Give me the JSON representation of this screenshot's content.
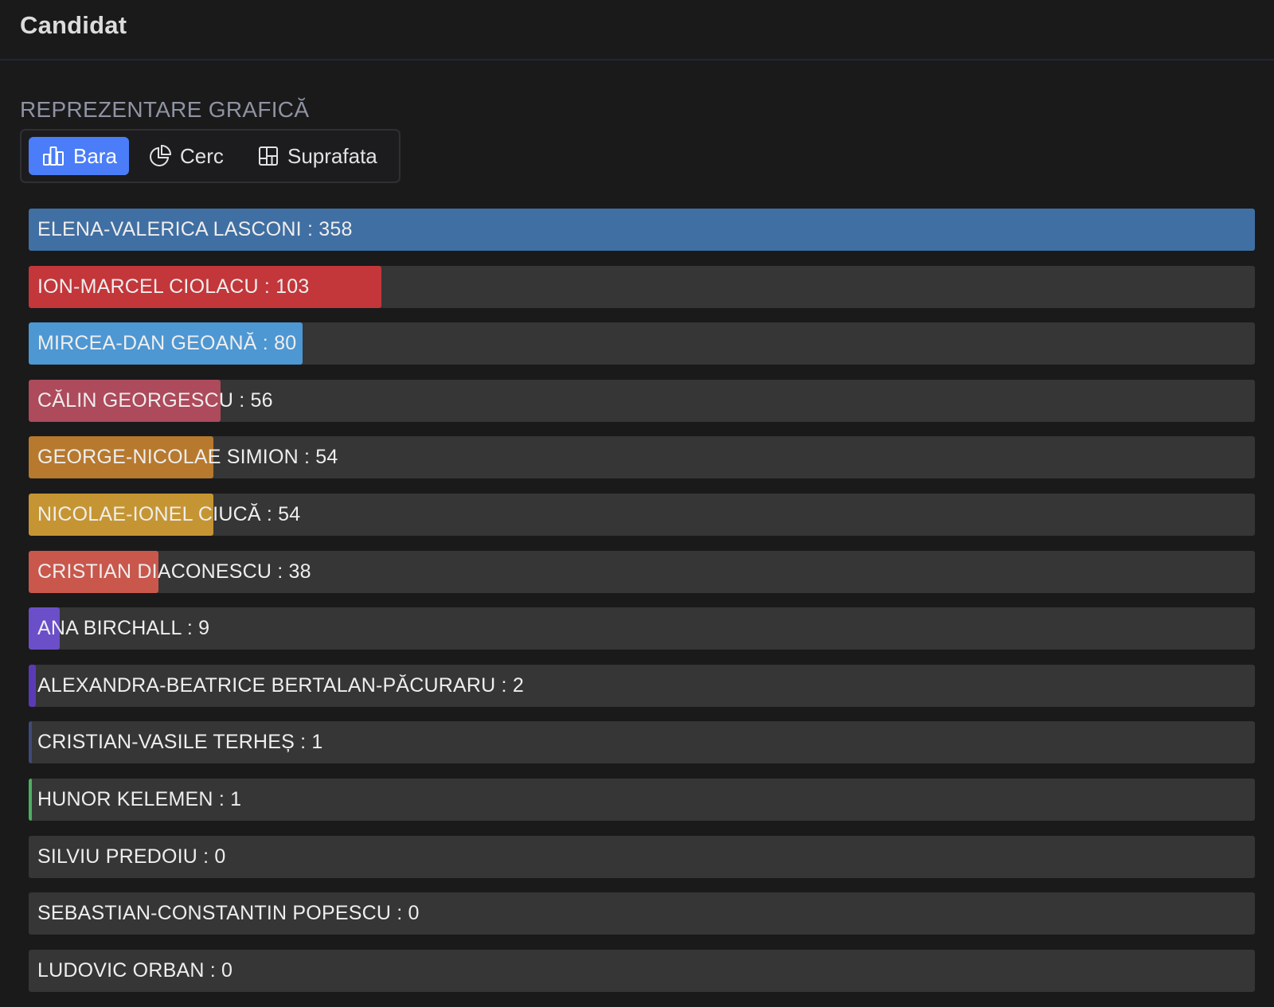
{
  "header": {
    "title": "Candidat"
  },
  "section": {
    "label": "REPREZENTARE GRAFICĂ"
  },
  "chart_toggle": {
    "options": [
      {
        "label": "Bara",
        "icon": "bar-chart-icon",
        "active": true
      },
      {
        "label": "Cerc",
        "icon": "pie-chart-icon",
        "active": false
      },
      {
        "label": "Suprafata",
        "icon": "treemap-icon",
        "active": false
      }
    ],
    "accent": "#4a7df7"
  },
  "chart_data": {
    "type": "bar",
    "orientation": "horizontal",
    "categories": [
      "ELENA-VALERICA LASCONI",
      "ION-MARCEL CIOLACU",
      "MIRCEA-DAN GEOANĂ",
      "CĂLIN GEORGESCU",
      "GEORGE-NICOLAE SIMION",
      "NICOLAE-IONEL CIUCĂ",
      "CRISTIAN DIACONESCU",
      "ANA BIRCHALL",
      "ALEXANDRA-BEATRICE BERTALAN-PĂCURARU",
      "CRISTIAN-VASILE TERHEȘ",
      "HUNOR KELEMEN",
      "SILVIU PREDOIU",
      "SEBASTIAN-CONSTANTIN POPESCU",
      "LUDOVIC ORBAN"
    ],
    "values": [
      358,
      103,
      80,
      56,
      54,
      54,
      38,
      9,
      2,
      1,
      1,
      0,
      0,
      0
    ],
    "colors": [
      "#406fa3",
      "#c3363a",
      "#4d97d3",
      "#ad4a5b",
      "#b7792e",
      "#c69533",
      "#c9574c",
      "#6a4fc8",
      "#5a3bb5",
      "#3f4a7a",
      "#4caf62",
      "#363637",
      "#363637",
      "#363637"
    ],
    "xlim": [
      0,
      358
    ],
    "label_separator": " : "
  }
}
